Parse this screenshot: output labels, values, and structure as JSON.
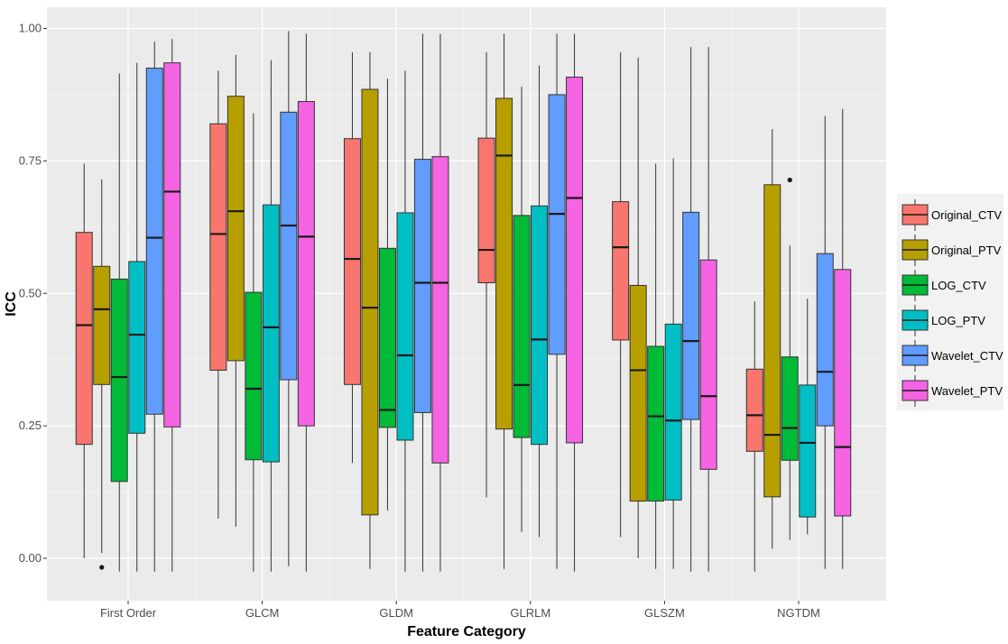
{
  "chart_data": {
    "type": "boxplot",
    "title": "",
    "xlabel": "Feature Category",
    "ylabel": "ICC",
    "ylim": [
      -0.08,
      1.04
    ],
    "yticks": [
      0.0,
      0.25,
      0.5,
      0.75,
      1.0
    ],
    "ytick_labels": [
      "0.00",
      "0.25",
      "0.50",
      "0.75",
      "1.00"
    ],
    "grid": true,
    "legend_position": "right",
    "categories": [
      "First Order",
      "GLCM",
      "GLDM",
      "GLRLM",
      "GLSZM",
      "NGTDM"
    ],
    "series": [
      {
        "name": "Original_CTV",
        "color": "#F8766D",
        "boxes": [
          {
            "min": 0.0,
            "q1": 0.215,
            "median": 0.44,
            "q3": 0.615,
            "max": 0.745,
            "outliers": []
          },
          {
            "min": 0.075,
            "q1": 0.355,
            "median": 0.612,
            "q3": 0.82,
            "max": 0.92,
            "outliers": []
          },
          {
            "min": 0.18,
            "q1": 0.328,
            "median": 0.565,
            "q3": 0.792,
            "max": 0.955,
            "outliers": []
          },
          {
            "min": 0.115,
            "q1": 0.52,
            "median": 0.582,
            "q3": 0.793,
            "max": 0.955,
            "outliers": []
          },
          {
            "min": 0.04,
            "q1": 0.412,
            "median": 0.587,
            "q3": 0.673,
            "max": 0.955,
            "outliers": []
          },
          {
            "min": -0.025,
            "q1": 0.202,
            "median": 0.27,
            "q3": 0.357,
            "max": 0.485,
            "outliers": []
          }
        ]
      },
      {
        "name": "Original_PTV",
        "color": "#B79F00",
        "boxes": [
          {
            "min": 0.01,
            "q1": 0.328,
            "median": 0.47,
            "q3": 0.551,
            "max": 0.715,
            "outliers": [
              -0.017
            ]
          },
          {
            "min": 0.06,
            "q1": 0.373,
            "median": 0.655,
            "q3": 0.872,
            "max": 0.95,
            "outliers": []
          },
          {
            "min": -0.02,
            "q1": 0.082,
            "median": 0.473,
            "q3": 0.885,
            "max": 0.955,
            "outliers": []
          },
          {
            "min": -0.02,
            "q1": 0.244,
            "median": 0.76,
            "q3": 0.868,
            "max": 0.99,
            "outliers": []
          },
          {
            "min": 0.0,
            "q1": 0.108,
            "median": 0.355,
            "q3": 0.515,
            "max": 0.945,
            "outliers": []
          },
          {
            "min": 0.018,
            "q1": 0.116,
            "median": 0.233,
            "q3": 0.705,
            "max": 0.81,
            "outliers": []
          }
        ]
      },
      {
        "name": "LOG_CTV",
        "color": "#00BA38",
        "boxes": [
          {
            "min": -0.025,
            "q1": 0.145,
            "median": 0.342,
            "q3": 0.527,
            "max": 0.915,
            "outliers": []
          },
          {
            "min": -0.025,
            "q1": 0.186,
            "median": 0.32,
            "q3": 0.502,
            "max": 0.84,
            "outliers": []
          },
          {
            "min": 0.09,
            "q1": 0.247,
            "median": 0.28,
            "q3": 0.585,
            "max": 0.905,
            "outliers": []
          },
          {
            "min": 0.05,
            "q1": 0.228,
            "median": 0.327,
            "q3": 0.647,
            "max": 0.89,
            "outliers": []
          },
          {
            "min": -0.02,
            "q1": 0.108,
            "median": 0.268,
            "q3": 0.4,
            "max": 0.745,
            "outliers": []
          },
          {
            "min": 0.035,
            "q1": 0.185,
            "median": 0.246,
            "q3": 0.38,
            "max": 0.59,
            "outliers": [
              0.714
            ]
          }
        ]
      },
      {
        "name": "LOG_PTV",
        "color": "#00BFC4",
        "boxes": [
          {
            "min": -0.025,
            "q1": 0.236,
            "median": 0.422,
            "q3": 0.56,
            "max": 0.935,
            "outliers": []
          },
          {
            "min": -0.025,
            "q1": 0.182,
            "median": 0.436,
            "q3": 0.667,
            "max": 0.94,
            "outliers": []
          },
          {
            "min": -0.025,
            "q1": 0.223,
            "median": 0.383,
            "q3": 0.652,
            "max": 0.92,
            "outliers": []
          },
          {
            "min": 0.04,
            "q1": 0.215,
            "median": 0.413,
            "q3": 0.665,
            "max": 0.93,
            "outliers": []
          },
          {
            "min": -0.02,
            "q1": 0.11,
            "median": 0.26,
            "q3": 0.442,
            "max": 0.755,
            "outliers": []
          },
          {
            "min": 0.045,
            "q1": 0.078,
            "median": 0.218,
            "q3": 0.327,
            "max": 0.49,
            "outliers": []
          }
        ]
      },
      {
        "name": "Wavelet_CTV",
        "color": "#619CFF",
        "boxes": [
          {
            "min": -0.025,
            "q1": 0.272,
            "median": 0.605,
            "q3": 0.925,
            "max": 0.975,
            "outliers": []
          },
          {
            "min": -0.015,
            "q1": 0.337,
            "median": 0.628,
            "q3": 0.842,
            "max": 0.995,
            "outliers": []
          },
          {
            "min": -0.025,
            "q1": 0.275,
            "median": 0.52,
            "q3": 0.753,
            "max": 0.99,
            "outliers": []
          },
          {
            "min": -0.02,
            "q1": 0.385,
            "median": 0.65,
            "q3": 0.875,
            "max": 0.99,
            "outliers": []
          },
          {
            "min": -0.025,
            "q1": 0.262,
            "median": 0.41,
            "q3": 0.653,
            "max": 0.965,
            "outliers": []
          },
          {
            "min": -0.02,
            "q1": 0.25,
            "median": 0.352,
            "q3": 0.575,
            "max": 0.835,
            "outliers": []
          }
        ]
      },
      {
        "name": "Wavelet_PTV",
        "color": "#F564E3",
        "boxes": [
          {
            "min": -0.025,
            "q1": 0.248,
            "median": 0.692,
            "q3": 0.935,
            "max": 0.98,
            "outliers": []
          },
          {
            "min": -0.025,
            "q1": 0.25,
            "median": 0.607,
            "q3": 0.862,
            "max": 0.99,
            "outliers": []
          },
          {
            "min": -0.025,
            "q1": 0.18,
            "median": 0.52,
            "q3": 0.758,
            "max": 0.99,
            "outliers": []
          },
          {
            "min": -0.025,
            "q1": 0.218,
            "median": 0.68,
            "q3": 0.908,
            "max": 0.99,
            "outliers": []
          },
          {
            "min": -0.025,
            "q1": 0.168,
            "median": 0.306,
            "q3": 0.563,
            "max": 0.965,
            "outliers": []
          },
          {
            "min": -0.02,
            "q1": 0.08,
            "median": 0.21,
            "q3": 0.545,
            "max": 0.848,
            "outliers": []
          }
        ]
      }
    ]
  }
}
